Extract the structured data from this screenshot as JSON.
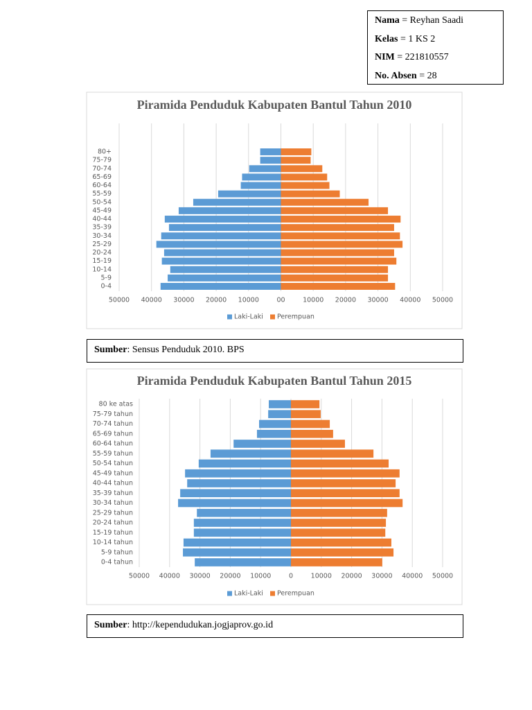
{
  "info": [
    {
      "label": "Nama",
      "value": "= Reyhan Saadi"
    },
    {
      "label": "Kelas",
      "value": "= 1 KS 2"
    },
    {
      "label": "NIM",
      "value": "= 221810557"
    },
    {
      "label": "No. Absen",
      "value": "= 28"
    }
  ],
  "chart_data": [
    {
      "type": "bar",
      "orientation": "horizontal",
      "title": "Piramida Penduduk Kabupaten Bantul Tahun 2010",
      "categories": [
        "80+",
        "75-79",
        "70-74",
        "65-69",
        "60-64",
        "55-59",
        "50-54",
        "45-49",
        "40-44",
        "35-39",
        "30-34",
        "25-29",
        "20-24",
        "15-19",
        "10-14",
        "5-9",
        "0-4"
      ],
      "series": [
        {
          "name": "Laki-Laki",
          "color": "#5b9bd5",
          "values": [
            -6400,
            -6400,
            -9800,
            -12000,
            -12400,
            -19400,
            -27100,
            -31600,
            -35900,
            -34600,
            -37000,
            -38500,
            -36100,
            -36800,
            -34200,
            -35000,
            -37200
          ]
        },
        {
          "name": "Perempuan",
          "color": "#ed7d31",
          "values": [
            9400,
            9200,
            12800,
            14300,
            15000,
            18200,
            27100,
            33100,
            37000,
            35000,
            36800,
            37600,
            35000,
            35700,
            33100,
            33100,
            35300
          ]
        }
      ],
      "xlim": [
        -50000,
        50000
      ],
      "xticks": [
        {
          "value": -50000,
          "label": "50000"
        },
        {
          "value": -40000,
          "label": "40000"
        },
        {
          "value": -30000,
          "label": "30000"
        },
        {
          "value": -20000,
          "label": "20000"
        },
        {
          "value": -10000,
          "label": "10000"
        },
        {
          "value": 0,
          "label": "00"
        },
        10000,
        20000,
        30000,
        40000,
        50000
      ],
      "grid": true,
      "legend": "bottom"
    },
    {
      "type": "bar",
      "orientation": "horizontal",
      "title": "Piramida Penduduk Kabupaten Bantul Tahun 2015",
      "categories": [
        "80 ke atas",
        "75-79 tahun",
        "70-74 tahun",
        "65-69 tahun",
        "60-64 tahun",
        "55-59 tahun",
        "50-54 tahun",
        "45-49 tahun",
        "40-44 tahun",
        "35-39 tahun",
        "30-34 tahun",
        "25-29 tahun",
        "20-24 tahun",
        "15-19 tahun",
        "10-14 tahun",
        "5-9 tahun",
        "0-4 tahun"
      ],
      "series": [
        {
          "name": "Laki-Laki",
          "color": "#5b9bd5",
          "values": [
            -7300,
            -7500,
            -10500,
            -11200,
            -18900,
            -26500,
            -30400,
            -34900,
            -34200,
            -36500,
            -37200,
            -31000,
            -32000,
            -32000,
            -35400,
            -35600,
            -31700
          ]
        },
        {
          "name": "Perempuan",
          "color": "#ed7d31",
          "values": [
            9400,
            9800,
            12800,
            13900,
            17800,
            27200,
            32200,
            35800,
            34500,
            35800,
            36800,
            31700,
            31300,
            31100,
            33100,
            33800,
            30100
          ]
        }
      ],
      "xlim": [
        -50000,
        50000
      ],
      "xticks": [
        -50000,
        -40000,
        -30000,
        -20000,
        -10000,
        0,
        10000,
        20000,
        30000,
        40000,
        50000
      ],
      "xtick_labels": [
        "50000",
        "40000",
        "30000",
        "20000",
        "10000",
        "0",
        "10000",
        "20000",
        "30000",
        "40000",
        "50000"
      ],
      "grid": true,
      "legend": "bottom"
    }
  ],
  "sources": [
    {
      "label": "Sumber",
      "text": ": Sensus Penduduk 2010. BPS"
    },
    {
      "label": "Sumber",
      "text": ": http://kependudukan.jogjaprov.go.id"
    }
  ]
}
